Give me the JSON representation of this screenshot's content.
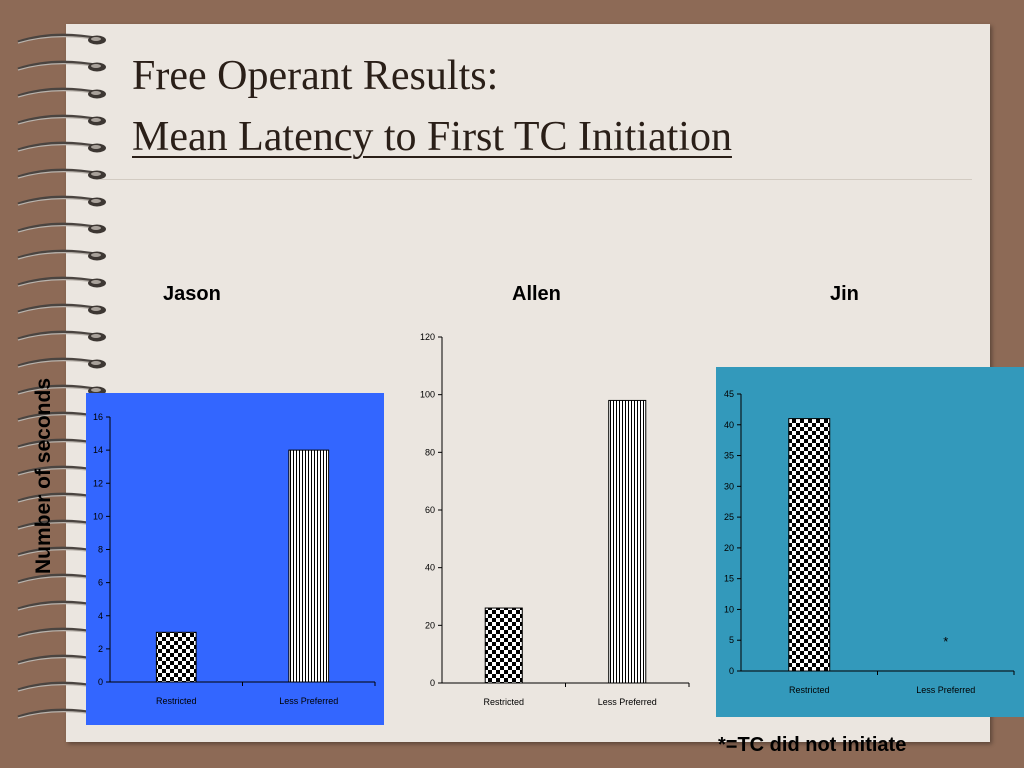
{
  "title": {
    "line1": "Free Operant Results:",
    "line2": "Mean Latency to First TC Initiation"
  },
  "y_axis_label": "Number of seconds",
  "footnote": "*=TC did not initiate",
  "colors": {
    "frame": "#8d6a56",
    "paper": "#ebe6e0",
    "jason_panel": "#3366ff",
    "jin_panel": "#3399bb"
  },
  "chart_data": [
    {
      "type": "bar",
      "title": "Jason",
      "categories": [
        "Restricted",
        "Less Preferred"
      ],
      "values": [
        3,
        14
      ],
      "ylim": [
        0,
        16
      ],
      "yticks": [
        0,
        2,
        4,
        6,
        8,
        10,
        12,
        14,
        16
      ],
      "bar_patterns": [
        "checker",
        "vstripe"
      ],
      "grid": false,
      "background": "#3366ff"
    },
    {
      "type": "bar",
      "title": "Allen",
      "categories": [
        "Restricted",
        "Less Preferred"
      ],
      "values": [
        26,
        98
      ],
      "ylim": [
        0,
        120
      ],
      "yticks": [
        0,
        20,
        40,
        60,
        80,
        100,
        120
      ],
      "bar_patterns": [
        "checker",
        "vstripe"
      ],
      "grid": false,
      "background": "none"
    },
    {
      "type": "bar",
      "title": "Jin",
      "categories": [
        "Restricted",
        "Less Preferred"
      ],
      "values": [
        41,
        0
      ],
      "ylim": [
        0,
        45
      ],
      "yticks": [
        0,
        5,
        10,
        15,
        20,
        25,
        30,
        35,
        40,
        45
      ],
      "bar_patterns": [
        "checker",
        "none"
      ],
      "annotations": [
        {
          "category": "Less Preferred",
          "text": "*"
        }
      ],
      "grid": false,
      "background": "#3399bb"
    }
  ]
}
